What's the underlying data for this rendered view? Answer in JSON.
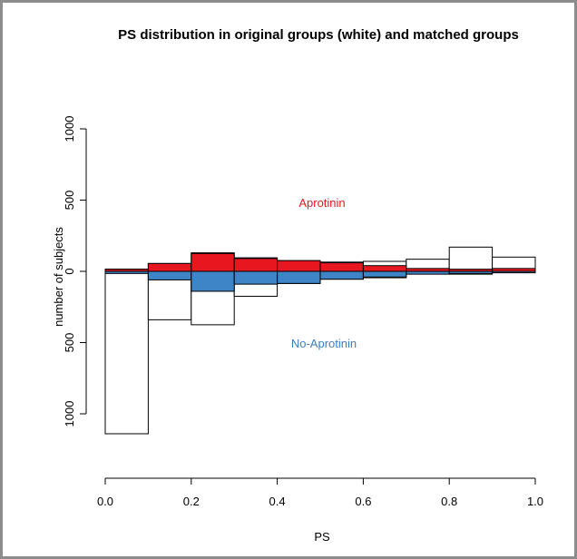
{
  "chart_data": {
    "type": "bar",
    "title": "PS distribution in original groups (white) and matched groups",
    "xlabel": "PS",
    "ylabel": "number of subjects",
    "xlim": [
      0,
      1
    ],
    "ylim": [
      -1000,
      1000
    ],
    "x_ticks": [
      "0.0",
      "0.2",
      "0.4",
      "0.6",
      "0.8",
      "1.0"
    ],
    "y_ticks": [
      "1000",
      "500",
      "0",
      "500",
      "1000"
    ],
    "bin_edges": [
      0.0,
      0.1,
      0.2,
      0.3,
      0.4,
      0.5,
      0.6,
      0.7,
      0.8,
      0.9,
      1.0
    ],
    "series": [
      {
        "name": "Aprotinin",
        "label_color": "#e31a1c",
        "original": [
          15,
          55,
          130,
          95,
          75,
          65,
          70,
          85,
          170,
          100
        ],
        "matched": [
          15,
          55,
          125,
          90,
          75,
          60,
          40,
          20,
          15,
          20
        ]
      },
      {
        "name": "No-Aprotinin",
        "label_color": "#3a7fc0",
        "original": [
          1140,
          340,
          375,
          175,
          85,
          55,
          45,
          15,
          20,
          10
        ],
        "matched": [
          15,
          60,
          140,
          90,
          85,
          55,
          40,
          20,
          15,
          10
        ]
      }
    ],
    "colors": {
      "aprotinin_fill": "#e8161e",
      "no_aprotinin_fill": "#3d85c6",
      "original_fill": "#ffffff",
      "axis": "#000000"
    }
  }
}
